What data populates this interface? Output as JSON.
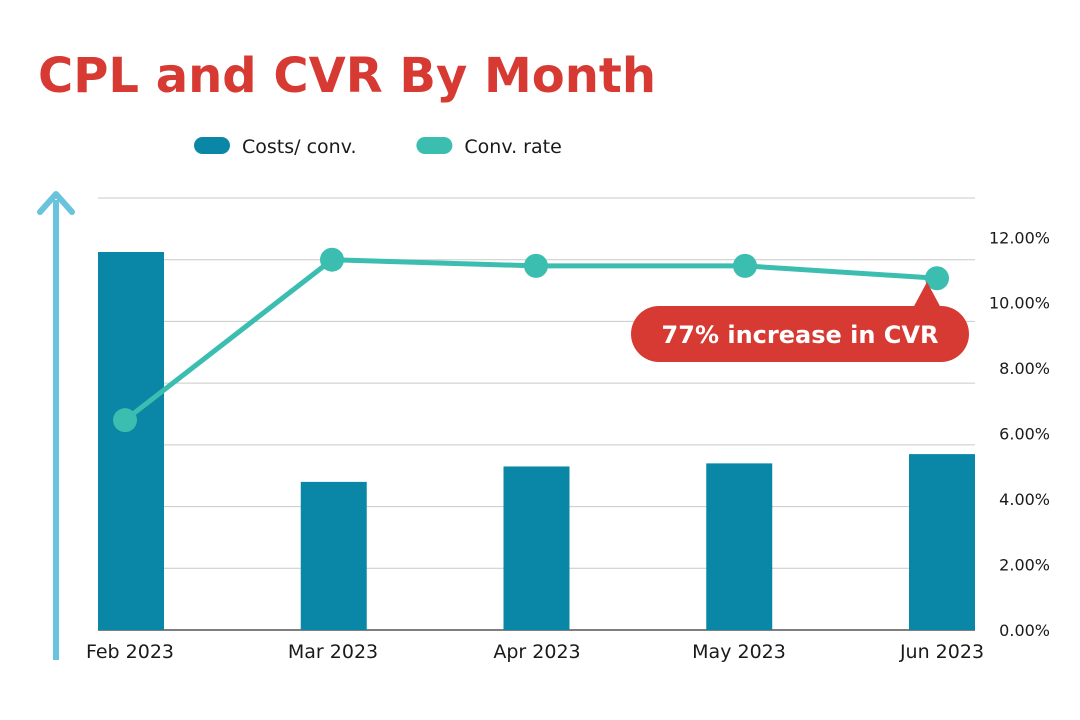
{
  "chart_data": {
    "type": "bar",
    "title": "CPL and CVR By Month",
    "categories": [
      "Feb 2023",
      "Mar 2023",
      "Apr 2023",
      "May 2023",
      "Jun 2023"
    ],
    "series": [
      {
        "name": "Costs/ conv.",
        "type": "bar",
        "values": [
          12.25,
          4.8,
          5.3,
          5.4,
          5.7
        ],
        "color": "#0a87a6"
      },
      {
        "name": "Conv. rate",
        "type": "line",
        "axis": "right",
        "values": [
          6.8,
          12.0,
          11.8,
          11.8,
          11.4
        ],
        "color": "#3bbdb0"
      }
    ],
    "y2_ticks": [
      "0.00%",
      "2.00%",
      "4.00%",
      "6.00%",
      "8.00%",
      "10.00%",
      "12.00%"
    ],
    "y2lim": [
      0,
      14
    ],
    "ylim": [
      0,
      14
    ],
    "left_axis_labels": "hidden",
    "legend_position": "top-center",
    "grid": true,
    "annotation": {
      "text": "77% increase in CVR",
      "target_category": "Jun 2023",
      "color": "#d63a33"
    },
    "arrow_color": "#6ac3dc",
    "title_color": "#d63a33",
    "grid_color": "#c9c9c9",
    "text_color": "#1a1a1a"
  }
}
